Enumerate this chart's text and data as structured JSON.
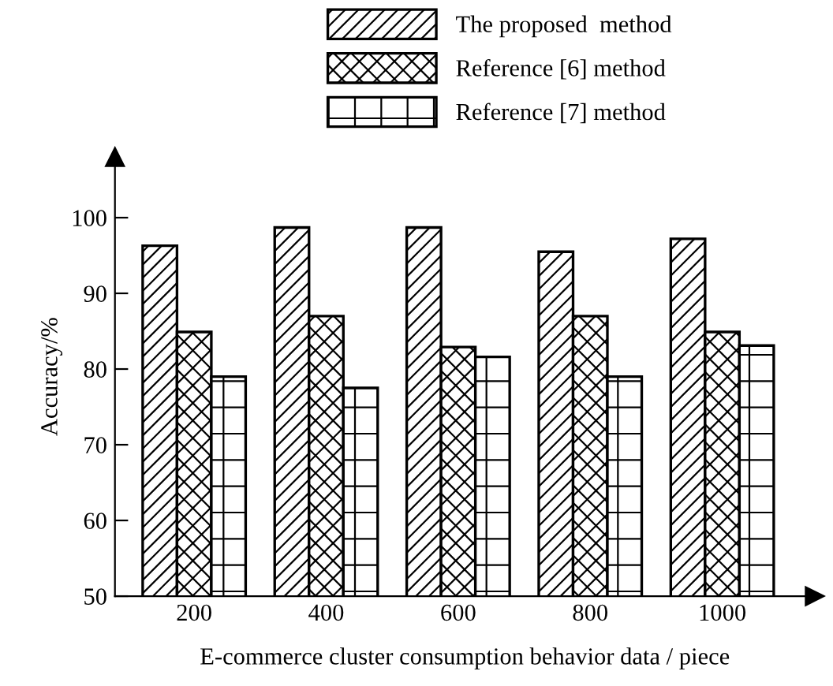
{
  "chart_data": {
    "type": "bar",
    "xlabel": "E-commerce cluster consumption behavior data / piece",
    "ylabel": "Accuracy/%",
    "categories": [
      "200",
      "400",
      "600",
      "800",
      "1000"
    ],
    "series": [
      {
        "name": "The proposed  method",
        "color": "#000000",
        "values": [
          96.3,
          98.7,
          98.7,
          95.5,
          97.2
        ]
      },
      {
        "name": "Reference [6] method",
        "color": "#000000",
        "values": [
          84.9,
          87.0,
          82.9,
          87.0,
          84.9
        ]
      },
      {
        "name": "Reference [7] method",
        "color": "#000000",
        "values": [
          79.0,
          77.5,
          81.6,
          79.0,
          83.1
        ]
      }
    ],
    "ylim": [
      50,
      108
    ],
    "yticks": [
      50,
      60,
      70,
      80,
      90,
      100
    ],
    "grid": false,
    "legend": "top"
  }
}
